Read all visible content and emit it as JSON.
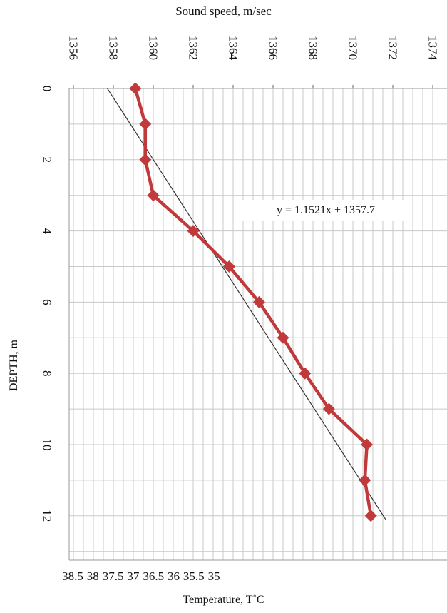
{
  "chart_data": {
    "type": "line",
    "orientation": "depth-profile",
    "top_axis_label": "Sound speed, m/sec",
    "bottom_axis_label": "Temperature, T˚C",
    "left_axis_label": "DEPTH, m",
    "top_ticks": [
      "1356",
      "1358",
      "1360",
      "1362",
      "1364",
      "1366",
      "1368",
      "1370",
      "1372",
      "1374"
    ],
    "bottom_ticks": [
      "38.5",
      "38",
      "37.5",
      "37",
      "36.5",
      "36",
      "35.5",
      "35"
    ],
    "depth_ticks": [
      "0",
      "2",
      "4",
      "6",
      "8",
      "10",
      "12"
    ],
    "sound_speed_range": [
      1356,
      1374
    ],
    "temperature_range": [
      38.5,
      34.5
    ],
    "depth_range": [
      0,
      13.2
    ],
    "grid": true,
    "series": [
      {
        "color": "#c0393b",
        "marker": "diamond",
        "x_unit": "m/sec",
        "points": [
          {
            "depth": 0,
            "value": 1359.1
          },
          {
            "depth": 1,
            "value": 1359.6
          },
          {
            "depth": 2,
            "value": 1359.6
          },
          {
            "depth": 3,
            "value": 1360.0
          },
          {
            "depth": 4,
            "value": 1362.0
          },
          {
            "depth": 5,
            "value": 1363.8
          },
          {
            "depth": 6,
            "value": 1365.3
          },
          {
            "depth": 7,
            "value": 1366.5
          },
          {
            "depth": 8,
            "value": 1367.6
          },
          {
            "depth": 9,
            "value": 1368.8
          },
          {
            "depth": 10,
            "value": 1370.7
          },
          {
            "depth": 11,
            "value": 1370.6
          },
          {
            "depth": 12,
            "value": 1370.9
          }
        ]
      }
    ],
    "trendline": {
      "equation": "y = 1.1521x + 1357.7",
      "slope": 1.1521,
      "intercept": 1357.7,
      "color": "#333333"
    }
  }
}
